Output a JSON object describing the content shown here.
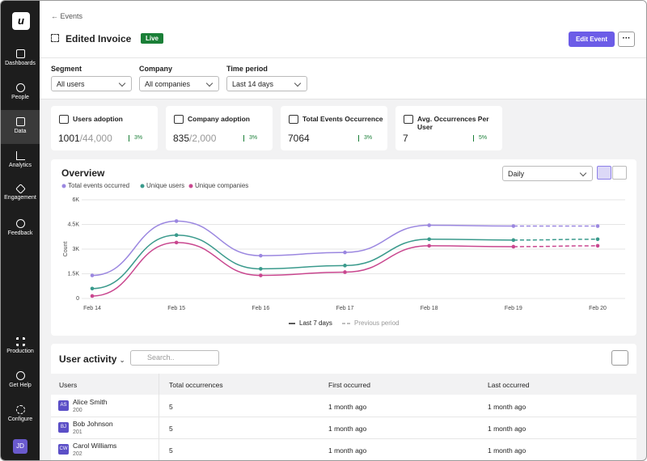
{
  "sidebar": {
    "logo": "u",
    "items": [
      "Dashboards",
      "People",
      "Data",
      "Analytics",
      "Engagement",
      "Feedback"
    ],
    "bottom": [
      "Production",
      "Get Help",
      "Configure"
    ],
    "avatar": "JD"
  },
  "header": {
    "back": "Events",
    "title": "Edited Invoice",
    "status": "Live",
    "button": "Edit Event",
    "more": "···"
  },
  "filters": [
    {
      "label": "Segment",
      "value": "All users"
    },
    {
      "label": "Company",
      "value": "All companies"
    },
    {
      "label": "Time period",
      "value": "Last 14 days"
    }
  ],
  "stats": [
    {
      "label": "Users adoption",
      "value": "1001",
      "total": "/44,000",
      "change": "3%"
    },
    {
      "label": "Company adoption",
      "value": "835",
      "total": "/2,000",
      "change": "3%"
    },
    {
      "label": "Total Events Occurrence",
      "value": "7064",
      "total": "",
      "change": "3%"
    },
    {
      "label": "Avg. Occurrences Per User",
      "value": "7",
      "total": "",
      "change": "5%"
    }
  ],
  "overview": {
    "title": "Overview",
    "interval": "Daily",
    "periods": [
      "Last 7 days",
      "Previous period"
    ]
  },
  "chart_data": {
    "type": "line",
    "ylabel": "Count",
    "categories": [
      "Feb 14",
      "Feb 15",
      "Feb 16",
      "Feb 17",
      "Feb 18",
      "Feb 19",
      "Feb 20"
    ],
    "ylim": [
      0,
      6000
    ],
    "yticks": [
      0,
      {
        "value": 1500,
        "label": "1.5K"
      },
      {
        "value": 3000,
        "label": "3K"
      },
      {
        "value": 4500,
        "label": "4.5K"
      },
      {
        "value": 6000,
        "label": "6K"
      }
    ],
    "grid": true,
    "dashed_from": 5,
    "series": [
      {
        "name": "Total events occurred",
        "color": "#9b87e0",
        "values": [
          1400,
          4700,
          2600,
          2800,
          4450,
          4400,
          4400
        ]
      },
      {
        "name": "Unique users",
        "color": "#3a9a8c",
        "values": [
          600,
          3850,
          1800,
          2000,
          3600,
          3550,
          3600
        ]
      },
      {
        "name": "Unique companies",
        "color": "#c9478f",
        "values": [
          150,
          3400,
          1400,
          1600,
          3200,
          3150,
          3200
        ]
      }
    ]
  },
  "activity": {
    "title": "User activity",
    "search": "Search..",
    "headers": [
      "Users",
      "Total occurrences",
      "First occurred",
      "Last occurred"
    ],
    "rows": [
      {
        "initials": "AS",
        "name": "Alice Smith",
        "id": "200",
        "total": "5",
        "first": "1 month ago",
        "last": "1 month ago"
      },
      {
        "initials": "BJ",
        "name": "Bob Johnson",
        "id": "201",
        "total": "5",
        "first": "1 month ago",
        "last": "1 month ago"
      },
      {
        "initials": "CW",
        "name": "Carol Williams",
        "id": "202",
        "total": "5",
        "first": "1 month ago",
        "last": "1 month ago"
      }
    ]
  }
}
